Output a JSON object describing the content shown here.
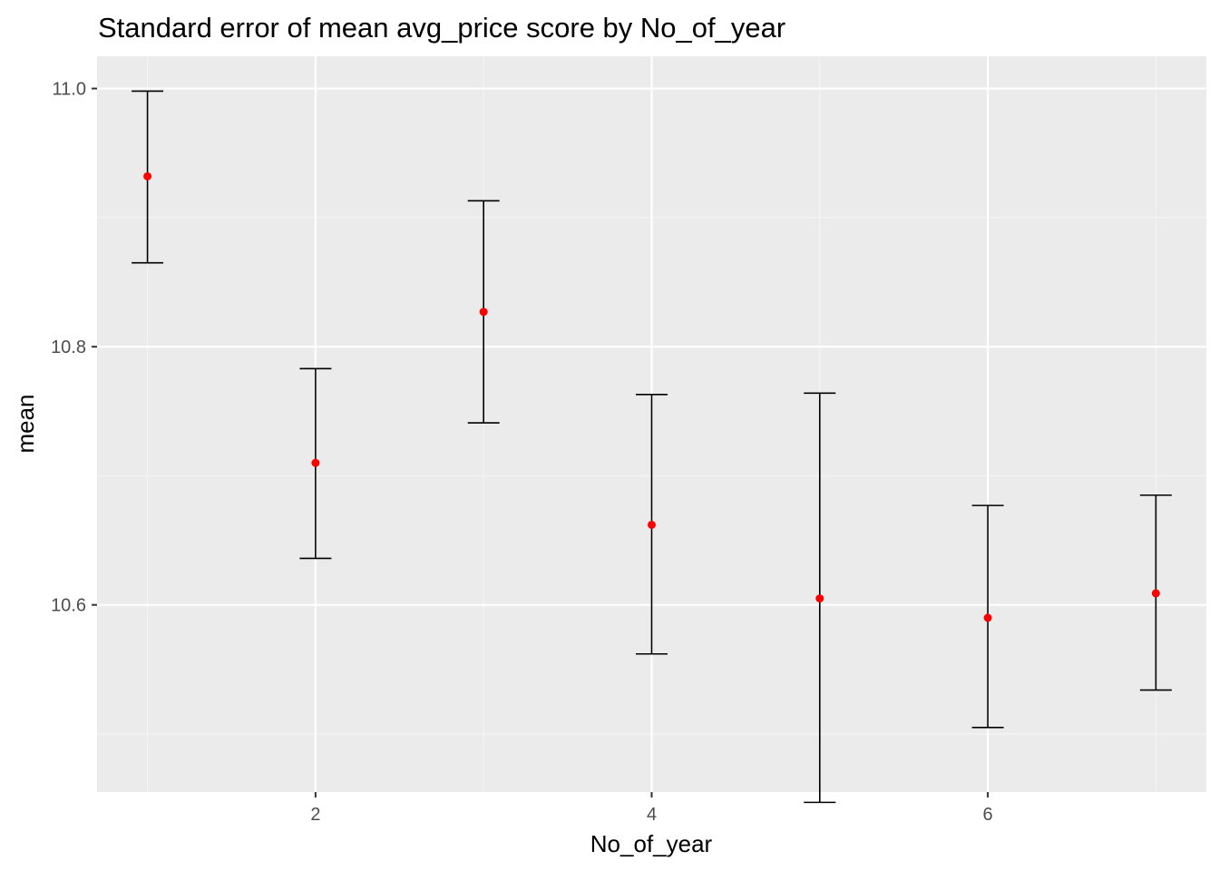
{
  "chart_data": {
    "type": "errorbar",
    "title": "Standard error of mean avg_price score by No_of_year",
    "xlabel": "No_of_year",
    "ylabel": "mean",
    "xlim": [
      0.7,
      7.3
    ],
    "ylim": [
      10.455,
      11.025
    ],
    "x_ticks": [
      2,
      4,
      6
    ],
    "x_tick_labels": [
      "2",
      "4",
      "6"
    ],
    "y_ticks": [
      10.6,
      10.8,
      11.0
    ],
    "y_tick_labels": [
      "10.6",
      "10.8",
      "11.0"
    ],
    "grid": true,
    "points": [
      {
        "x": 1,
        "mean": 10.932,
        "lower": 10.865,
        "upper": 10.998
      },
      {
        "x": 2,
        "mean": 10.71,
        "lower": 10.636,
        "upper": 10.783
      },
      {
        "x": 3,
        "mean": 10.827,
        "lower": 10.741,
        "upper": 10.913
      },
      {
        "x": 4,
        "mean": 10.662,
        "lower": 10.562,
        "upper": 10.763
      },
      {
        "x": 5,
        "mean": 10.605,
        "lower": 10.447,
        "upper": 10.764
      },
      {
        "x": 6,
        "mean": 10.59,
        "lower": 10.505,
        "upper": 10.677
      },
      {
        "x": 7,
        "mean": 10.609,
        "lower": 10.534,
        "upper": 10.685
      }
    ],
    "colors": {
      "panel": "#ebebeb",
      "grid_major": "#ffffff",
      "grid_minor": "#f5f5f5",
      "errorbar": "#000000",
      "point": "#ff0000"
    }
  }
}
